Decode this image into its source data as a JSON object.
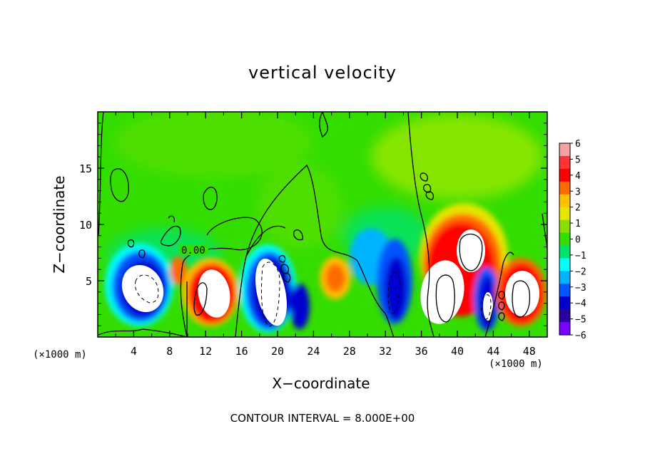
{
  "chart_data": {
    "type": "heatmap",
    "title": "vertical velocity",
    "xlabel": "X−coordinate",
    "ylabel": "Z−coordinate",
    "x_unit": "(×1000 m)",
    "contour_note": "CONTOUR INTERVAL = 8.000E+00",
    "contour_label": "0.00",
    "xlim": [
      0,
      50
    ],
    "ylim": [
      0,
      20
    ],
    "x_ticks": [
      4,
      8,
      12,
      16,
      20,
      24,
      28,
      32,
      36,
      40,
      44,
      48
    ],
    "y_ticks": [
      5,
      10,
      15
    ],
    "colorbar": {
      "range": [
        -6,
        6
      ],
      "tick_labels": [
        "6",
        "5",
        "4",
        "3",
        "2",
        "1",
        "0",
        "−1",
        "−2",
        "−3",
        "−4",
        "−5",
        "−6"
      ],
      "colors": [
        "#f4a3a3",
        "#ff3333",
        "#ff0000",
        "#ff6a00",
        "#ffc000",
        "#e6e600",
        "#88e000",
        "#33dd00",
        "#00e46e",
        "#00ffff",
        "#00b4ff",
        "#0055ff",
        "#0000d0",
        "#2a00a0",
        "#7a00ff"
      ]
    },
    "cells": [
      {
        "x": 5,
        "z": 4.5,
        "w": "<-6",
        "kind": "white-core"
      },
      {
        "x": 13,
        "z": 4,
        "w": ">6",
        "kind": "white-core"
      },
      {
        "x": 19.5,
        "z": 5,
        "w": "<-6",
        "kind": "white-core"
      },
      {
        "x": 33,
        "z": 4,
        "w": "<-6",
        "kind": "blue"
      },
      {
        "x": 40,
        "z": 5.5,
        "w": ">6",
        "kind": "white-core"
      },
      {
        "x": 43.5,
        "z": 2.5,
        "w": "<-6",
        "kind": "blue"
      },
      {
        "x": 47,
        "z": 3,
        "w": ">6",
        "kind": "white-core"
      }
    ]
  }
}
